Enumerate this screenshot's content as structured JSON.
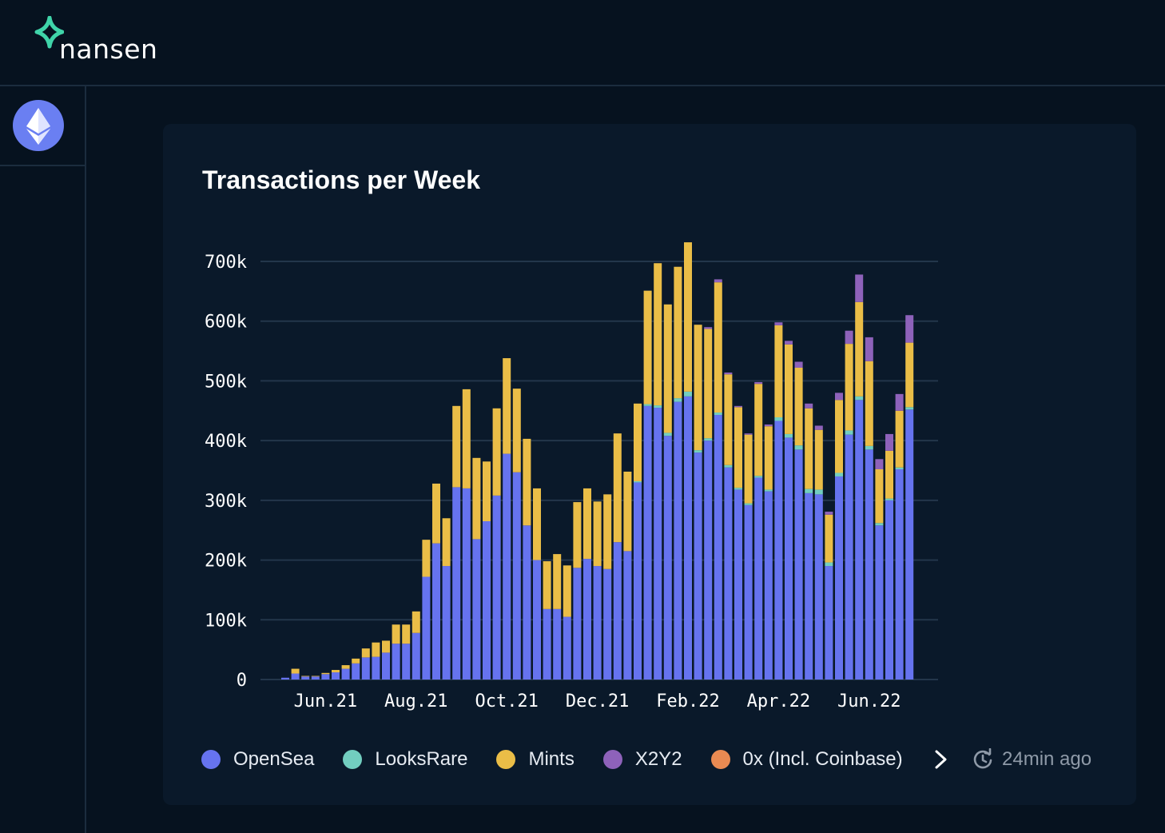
{
  "brand": {
    "name": "nansen",
    "accent": "#3fd4a9"
  },
  "sidebar": {
    "chain_icon": "ethereum-icon",
    "chain_color": "#6a7ff2"
  },
  "card": {
    "title": "Transactions per Week"
  },
  "chart_data": {
    "type": "bar",
    "stacked": true,
    "title": "Transactions per Week",
    "xlabel": "",
    "ylabel": "",
    "ylim": [
      0,
      700000
    ],
    "y_ticks": [
      0,
      100000,
      200000,
      300000,
      400000,
      500000,
      600000,
      700000
    ],
    "y_tick_labels": [
      "0",
      "100k",
      "200k",
      "300k",
      "400k",
      "500k",
      "600k",
      "700k"
    ],
    "x_tick_labels": [
      {
        "label": "Jun.21",
        "index": 4
      },
      {
        "label": "Aug.21",
        "index": 13
      },
      {
        "label": "Oct.21",
        "index": 22
      },
      {
        "label": "Dec.21",
        "index": 31
      },
      {
        "label": "Feb.22",
        "index": 40
      },
      {
        "label": "Apr.22",
        "index": 49
      },
      {
        "label": "Jun.22",
        "index": 58
      }
    ],
    "grid": true,
    "legend_position": "bottom",
    "series": [
      {
        "name": "OpenSea",
        "color": "#6673ef",
        "values": [
          3000,
          10000,
          5000,
          5000,
          9000,
          12000,
          18000,
          27000,
          37000,
          38000,
          45000,
          60000,
          60000,
          78000,
          172000,
          228000,
          190000,
          322000,
          320000,
          235000,
          265000,
          308000,
          378000,
          347000,
          258000,
          200000,
          118000,
          118000,
          105000,
          187000,
          202000,
          190000,
          185000,
          230000,
          215000,
          330000,
          458000,
          455000,
          408000,
          465000,
          474000,
          380000,
          400000,
          443000,
          355000,
          318000,
          292000,
          338000,
          315000,
          433000,
          405000,
          385000,
          312000,
          310000,
          190000,
          340000,
          410000,
          468000,
          385000,
          258000,
          300000,
          352000,
          452000
        ]
      },
      {
        "name": "LooksRare",
        "color": "#72cec0",
        "values": [
          0,
          0,
          0,
          0,
          0,
          0,
          0,
          0,
          0,
          0,
          0,
          0,
          0,
          0,
          0,
          0,
          0,
          0,
          0,
          0,
          0,
          0,
          0,
          0,
          0,
          0,
          0,
          0,
          0,
          0,
          0,
          0,
          0,
          0,
          0,
          2000,
          3000,
          4000,
          5000,
          6000,
          8000,
          4000,
          4000,
          4000,
          4000,
          3000,
          3000,
          3000,
          3000,
          6000,
          6000,
          7000,
          7000,
          8000,
          6000,
          6000,
          7000,
          6000,
          6000,
          4000,
          3000,
          3000,
          4000
        ]
      },
      {
        "name": "Mints",
        "color": "#eabd47",
        "values": [
          0,
          8000,
          1000,
          1000,
          2000,
          4000,
          6000,
          8000,
          15000,
          24000,
          20000,
          32000,
          32000,
          36000,
          62000,
          100000,
          80000,
          136000,
          166000,
          136000,
          100000,
          146000,
          160000,
          140000,
          145000,
          120000,
          80000,
          92000,
          86000,
          110000,
          118000,
          108000,
          125000,
          182000,
          133000,
          130000,
          190000,
          238000,
          215000,
          220000,
          250000,
          210000,
          183000,
          218000,
          152000,
          135000,
          115000,
          154000,
          106000,
          154000,
          150000,
          130000,
          135000,
          100000,
          80000,
          122000,
          145000,
          158000,
          142000,
          90000,
          80000,
          95000,
          108000
        ]
      },
      {
        "name": "X2Y2",
        "color": "#8e62ba",
        "values": [
          0,
          0,
          0,
          0,
          0,
          0,
          0,
          0,
          0,
          0,
          0,
          0,
          0,
          0,
          0,
          0,
          0,
          0,
          0,
          0,
          0,
          0,
          0,
          0,
          0,
          0,
          0,
          0,
          0,
          0,
          0,
          0,
          0,
          0,
          0,
          0,
          0,
          0,
          0,
          0,
          0,
          0,
          3000,
          5000,
          3000,
          2000,
          2000,
          3000,
          3000,
          5000,
          6000,
          10000,
          8000,
          7000,
          5000,
          12000,
          22000,
          46000,
          40000,
          17000,
          28000,
          28000,
          46000
        ]
      },
      {
        "name": "0x (Incl. Coinbase)",
        "color": "#e98a52",
        "values": [
          0,
          0,
          0,
          0,
          0,
          0,
          0,
          0,
          0,
          0,
          0,
          0,
          0,
          0,
          0,
          0,
          0,
          0,
          0,
          0,
          0,
          0,
          0,
          0,
          0,
          0,
          0,
          0,
          0,
          0,
          0,
          0,
          0,
          0,
          0,
          0,
          0,
          0,
          0,
          0,
          0,
          0,
          0,
          0,
          0,
          0,
          0,
          0,
          0,
          0,
          0,
          0,
          0,
          0,
          0,
          0,
          0,
          0,
          0,
          0,
          0,
          0,
          0
        ]
      }
    ]
  },
  "legend": {
    "items": [
      {
        "label": "OpenSea",
        "color": "#6673ef"
      },
      {
        "label": "LooksRare",
        "color": "#72cec0"
      },
      {
        "label": "Mints",
        "color": "#eabd47"
      },
      {
        "label": "X2Y2",
        "color": "#8e62ba"
      },
      {
        "label": "0x (Incl. Coinbase)",
        "color": "#e98a52"
      }
    ],
    "next_icon": "chevron-right-icon"
  },
  "updated": {
    "icon": "refresh-clock-icon",
    "text": "24min ago"
  }
}
